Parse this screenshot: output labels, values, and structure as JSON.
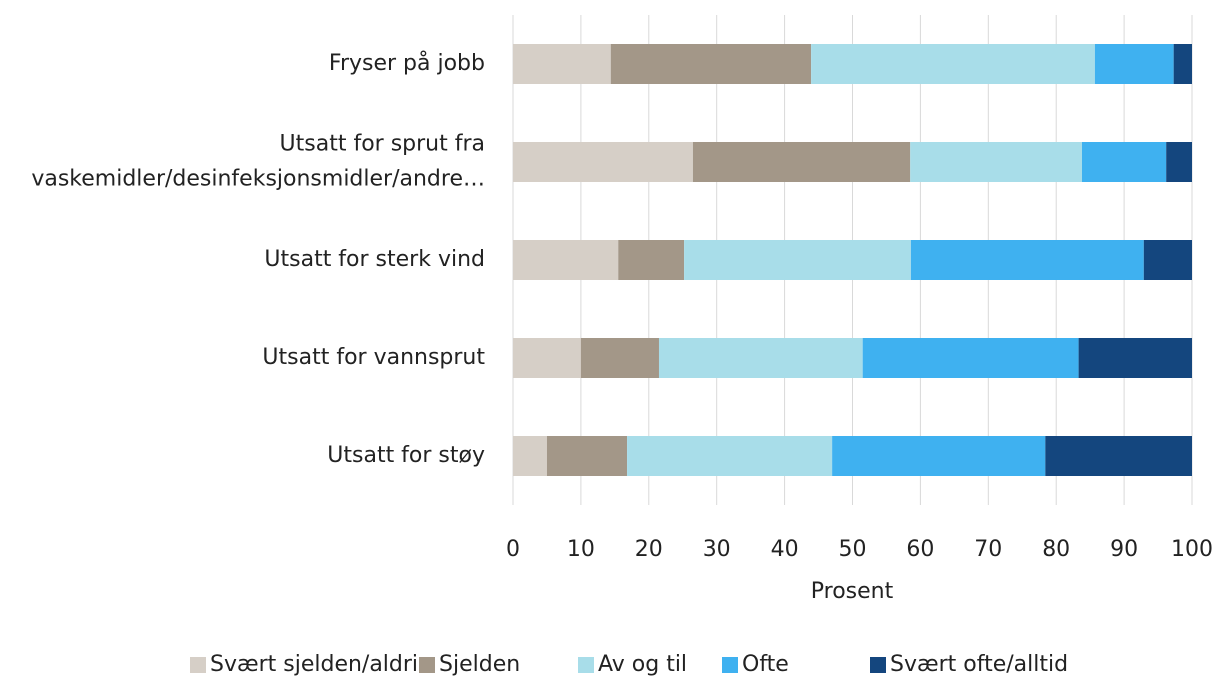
{
  "chart_data": {
    "type": "stacked_barh",
    "categories": [
      "Fryser på jobb",
      "Utsatt for sprut fra\nvaskemidler/desinfeksjonsmidler/andre…",
      "Utsatt for sterk vind",
      "Utsatt for vannsprut",
      "Utsatt for støy"
    ],
    "series": [
      {
        "name": "Svært sjelden/aldri",
        "color": "#d6cfc7",
        "values": [
          14.4,
          26.5,
          15.5,
          10.0,
          5.0
        ]
      },
      {
        "name": "Sjelden",
        "color": "#a39788",
        "values": [
          29.5,
          32.0,
          9.7,
          11.5,
          11.8
        ]
      },
      {
        "name": "Av og til",
        "color": "#a8dde9",
        "values": [
          41.8,
          25.3,
          33.4,
          30.0,
          30.2
        ]
      },
      {
        "name": "Ofte",
        "color": "#3fb1f0",
        "values": [
          11.6,
          12.4,
          34.3,
          31.8,
          31.4
        ]
      },
      {
        "name": "Svært ofte/alltid",
        "color": "#14467e",
        "values": [
          2.7,
          3.8,
          7.1,
          16.7,
          21.6
        ]
      }
    ],
    "xlabel": "Prosent",
    "xlim": [
      0,
      100
    ],
    "xticks": [
      0,
      10,
      20,
      30,
      40,
      50,
      60,
      70,
      80,
      90,
      100
    ],
    "grid": true,
    "legend": "bottom"
  }
}
